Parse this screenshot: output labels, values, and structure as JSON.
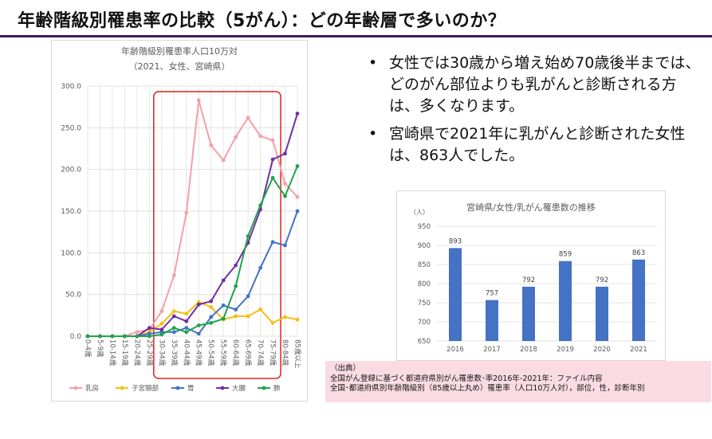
{
  "page": {
    "title": "年齢階級別罹患率の比較（5がん）：どの年齢層で多いのか？"
  },
  "bullets": [
    "女性では30歳から増え始め70歳後半までは、どのがん部位よりも乳がんと診断される方は、多くなります。",
    "宮崎県で2021年に乳がんと診断された女性は、863人でした。"
  ],
  "source": {
    "heading": "（出典）",
    "lines": [
      "全国がん登録に基づく都道府県別がん罹患数･率2016年-2021年：ファイル内容",
      "全国･都道府県別年齢階級別（85歳以上丸め）罹患率（人口10万人対），部位，性，診断年別"
    ]
  },
  "chart_data": [
    {
      "type": "line",
      "title": "年齢階級別罹患率人口10万対",
      "subtitle": "（2021、女性、宮崎県）",
      "categories": [
        "0-4歳",
        "5-9歳",
        "10-14歳",
        "15-19歳",
        "20-24歳",
        "25-29歳",
        "30-34歳",
        "35-39歳",
        "40-44歳",
        "45-49歳",
        "50-54歳",
        "55-59歳",
        "60-64歳",
        "65-69歳",
        "70-74歳",
        "75-79歳",
        "80-84歳",
        "85歳以上"
      ],
      "ylim": [
        0,
        300
      ],
      "yticks": [
        "0.0",
        "50.0",
        "100.0",
        "150.0",
        "200.0",
        "250.0",
        "300.0"
      ],
      "grid": true,
      "legend": "bottom",
      "highlight": {
        "from": "30-34歳",
        "to": "75-79歳",
        "color": "#e0201c"
      },
      "series": [
        {
          "name": "乳房",
          "color": "#f4a0a8",
          "values": [
            0,
            0,
            0,
            0,
            5,
            8,
            30,
            73,
            148,
            283,
            229,
            211,
            239,
            262,
            240,
            235,
            183,
            167
          ]
        },
        {
          "name": "子宮頸部",
          "color": "#f5bf12",
          "values": [
            0,
            0,
            0,
            0,
            0,
            5,
            15,
            30,
            27,
            41,
            35,
            20,
            24,
            24,
            32,
            16,
            23,
            20
          ]
        },
        {
          "name": "胃",
          "color": "#4472c4",
          "values": [
            0,
            0,
            0,
            0,
            0,
            3,
            5,
            5,
            10,
            3,
            23,
            37,
            32,
            48,
            82,
            113,
            109,
            150
          ]
        },
        {
          "name": "大腸",
          "color": "#7030a0",
          "values": [
            0,
            0,
            0,
            0,
            0,
            10,
            8,
            24,
            18,
            38,
            42,
            67,
            85,
            112,
            152,
            212,
            219,
            267
          ]
        },
        {
          "name": "肺",
          "color": "#1fa34a",
          "values": [
            0,
            0,
            0,
            0,
            0,
            0,
            2,
            10,
            5,
            13,
            16,
            21,
            60,
            120,
            157,
            190,
            168,
            204
          ]
        }
      ]
    },
    {
      "type": "bar",
      "title": "宮崎県/女性/乳がん罹患数の推移",
      "ylabel": "（人）",
      "categories": [
        "2016",
        "2017",
        "2018",
        "2019",
        "2020",
        "2021"
      ],
      "values": [
        893,
        757,
        792,
        859,
        792,
        863
      ],
      "ylim": [
        650,
        950
      ],
      "yticks": [
        "650",
        "700",
        "750",
        "800",
        "850",
        "900",
        "950"
      ],
      "color": "#4472c4",
      "grid": true
    }
  ]
}
